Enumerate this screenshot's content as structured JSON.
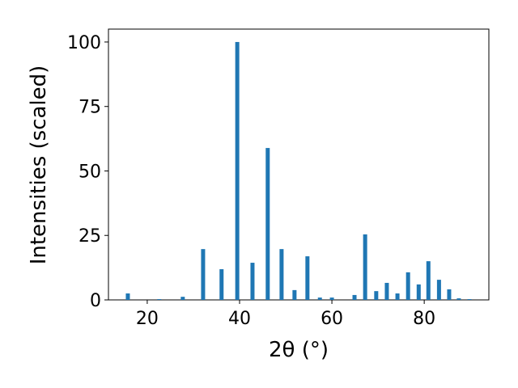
{
  "chart_data": {
    "type": "bar",
    "x_label": "2θ (°)",
    "y_label": "Intensities (scaled)",
    "x": [
      15.8,
      22.6,
      27.7,
      32.1,
      36.1,
      39.5,
      42.8,
      46.1,
      49.1,
      51.9,
      54.7,
      57.4,
      60.0,
      64.9,
      67.2,
      69.6,
      71.9,
      74.2,
      76.5,
      78.8,
      80.9,
      83.2,
      85.4,
      87.5,
      89.8
    ],
    "values": [
      2.5,
      0.3,
      1.2,
      19.7,
      11.9,
      100,
      14.4,
      58.9,
      19.7,
      3.8,
      16.9,
      0.9,
      0.9,
      1.9,
      25.4,
      3.4,
      6.6,
      2.5,
      10.7,
      6.0,
      15.0,
      7.8,
      4.1,
      0.6,
      0.3
    ],
    "color": "#1f77b4",
    "xlim": [
      11.6,
      94.0
    ],
    "ylim": [
      0,
      105
    ],
    "xticks": [
      20,
      40,
      60,
      80
    ],
    "yticks": [
      0,
      25,
      50,
      75,
      100
    ]
  }
}
